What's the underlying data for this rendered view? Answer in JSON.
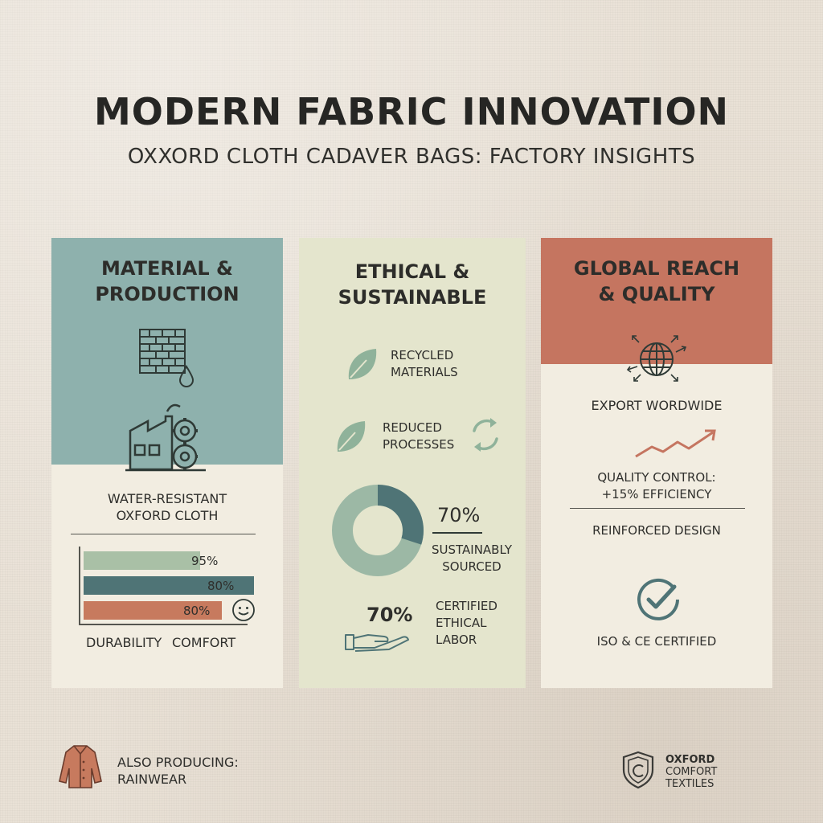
{
  "header": {
    "title": "MODERN FABRIC INNOVATION",
    "subtitle": "OXXORD CLOTH CADAVER BAGS: FACTORY INSIGHTS"
  },
  "panels": [
    {
      "title_line1": "MATERIAL &",
      "title_line2": "PRODUCTION",
      "feature_line1": "WATER-RESISTANT",
      "feature_line2": "OXFORD CLOTH",
      "bars": [
        {
          "value": 95,
          "label": "95%",
          "color": "#a9c0a6"
        },
        {
          "value": 80,
          "label": "80%",
          "color": "#4f7476"
        },
        {
          "value": 80,
          "label": "80%",
          "color": "#c77a5e"
        }
      ],
      "axis_label_1": "DURABILITY",
      "axis_label_2": "COMFORT",
      "icons": [
        "brick-fabric-icon",
        "water-drop-icon",
        "factory-gears-icon",
        "smiley-icon"
      ],
      "color": "#8eb1ad"
    },
    {
      "title_line1": "ETHICAL &",
      "title_line2": "SUSTAINABLE",
      "item1_line1": "RECYCLED",
      "item1_line2": "MATERIALS",
      "item2_line1": "REDUCED",
      "item2_line2": "PROCESSES",
      "donut": {
        "value": 70,
        "label": "70%",
        "caption_line1": "SUSTAINABLY",
        "caption_line2": "SOURCED"
      },
      "labor": {
        "label": "70%",
        "caption_line1": "CERTIFIED",
        "caption_line2": "ETHICAL",
        "caption_line3": "LABOR"
      },
      "icons": [
        "leaf-icon",
        "leaf-icon",
        "recycle-arrows-icon",
        "open-hand-icon"
      ],
      "color": "#e4e5cd"
    },
    {
      "title_line1": "GLOBAL REACH",
      "title_line2": "& QUALITY",
      "export_label": "EXPORT WORDWIDE",
      "qc_line1": "QUALITY CONTROL:",
      "qc_line2": "+15% EFFICIENCY",
      "reinforced": "REINFORCED DESIGN",
      "certified": "ISO & CE CERTIFIED",
      "icons": [
        "globe-arrows-icon",
        "trend-up-icon",
        "check-circle-icon"
      ],
      "color": "#c57560"
    }
  ],
  "footer": {
    "left_line1": "ALSO PRODUCING:",
    "left_line2": "RAINWEAR",
    "brand_line1": "OXFORD",
    "brand_line2": "COMFORT",
    "brand_line3": "TEXTILES",
    "icons": [
      "raincoat-icon",
      "shield-logo-icon"
    ]
  }
}
